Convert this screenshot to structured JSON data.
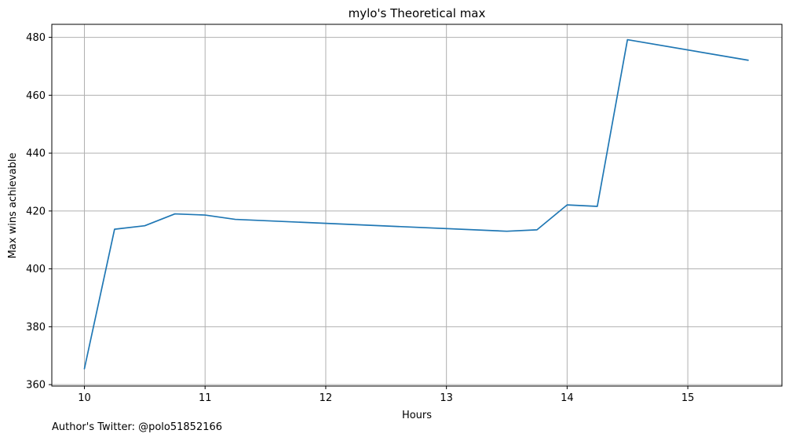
{
  "chart_data": {
    "type": "line",
    "title": "mylo's Theoretical max",
    "xlabel": "Hours",
    "ylabel": "Max wins achievable",
    "xlim": [
      9.73,
      15.78
    ],
    "ylim": [
      359.5,
      484.5
    ],
    "xticks": [
      10,
      11,
      12,
      13,
      14,
      15
    ],
    "yticks": [
      360,
      380,
      400,
      420,
      440,
      460,
      480
    ],
    "grid": true,
    "colors": {
      "line": "#1f77b4",
      "grid": "#b0b0b0",
      "axis": "#000000"
    },
    "series": [
      {
        "x": [
          10,
          10.25,
          10.5,
          10.75,
          11,
          11.25,
          13.5,
          13.75,
          14,
          14.25,
          14.5,
          15.5
        ],
        "values": [
          365.5,
          413.7,
          414.9,
          419.0,
          418.6,
          417.1,
          413.0,
          413.5,
          422.1,
          421.6,
          479.2,
          472.1
        ]
      }
    ]
  },
  "footer": {
    "note": "Author's Twitter: @polo51852166"
  }
}
